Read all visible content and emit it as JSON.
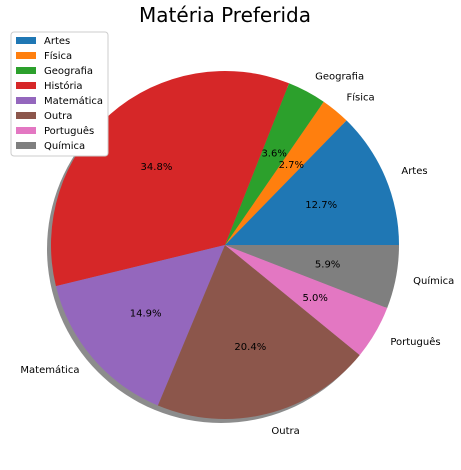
{
  "chart_data": {
    "type": "pie",
    "title": "Matéria Preferida",
    "legend_position": "top-left",
    "shadow": true,
    "start_angle_deg": 0,
    "direction": "counterclockwise",
    "slices": [
      {
        "label": "Artes",
        "value": 12.7,
        "pct_label": "12.7%",
        "color": "#1f77b4"
      },
      {
        "label": "Física",
        "value": 2.7,
        "pct_label": "2.7%",
        "color": "#ff7f0e"
      },
      {
        "label": "Geografia",
        "value": 3.6,
        "pct_label": "3.6%",
        "color": "#2ca02c"
      },
      {
        "label": "História",
        "value": 34.8,
        "pct_label": "34.8%",
        "color": "#d62728"
      },
      {
        "label": "Matemática",
        "value": 14.9,
        "pct_label": "14.9%",
        "color": "#9467bd"
      },
      {
        "label": "Outra",
        "value": 20.4,
        "pct_label": "20.4%",
        "color": "#8c564b"
      },
      {
        "label": "Português",
        "value": 5.0,
        "pct_label": "5.0%",
        "color": "#e377c2"
      },
      {
        "label": "Química",
        "value": 5.9,
        "pct_label": "5.9%",
        "color": "#7f7f7f"
      }
    ]
  }
}
